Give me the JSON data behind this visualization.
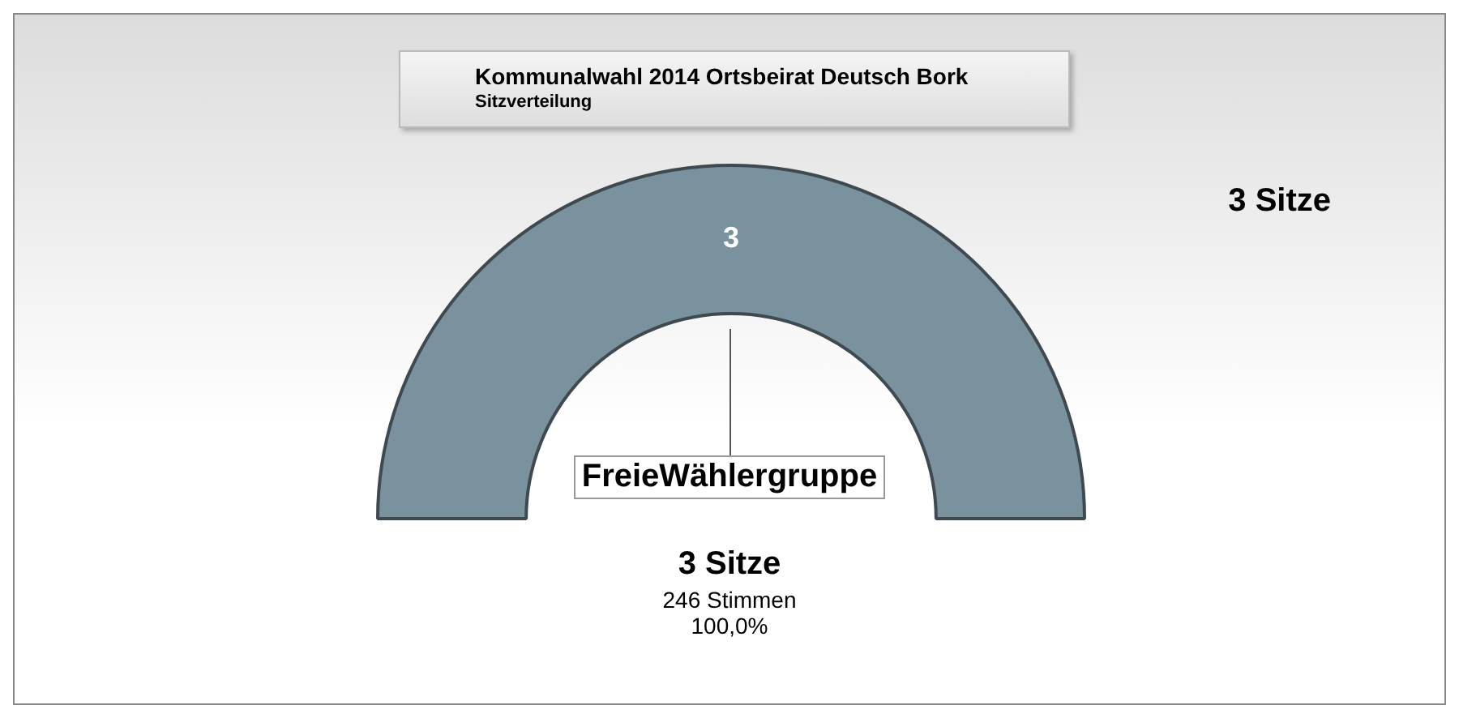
{
  "chart_data": {
    "type": "pie",
    "title": "Kommunalwahl 2014 Ortsbeirat Deutsch Bork",
    "subtitle": "Sitzverteilung",
    "categories": [
      "FreieWählergruppe"
    ],
    "values": [
      3
    ],
    "colors": [
      "#7a929e"
    ],
    "data_labels": true,
    "legend": false,
    "annotations": [
      "3 Sitze",
      "3 Sitze",
      "246 Stimmen",
      "100,0%"
    ]
  }
}
